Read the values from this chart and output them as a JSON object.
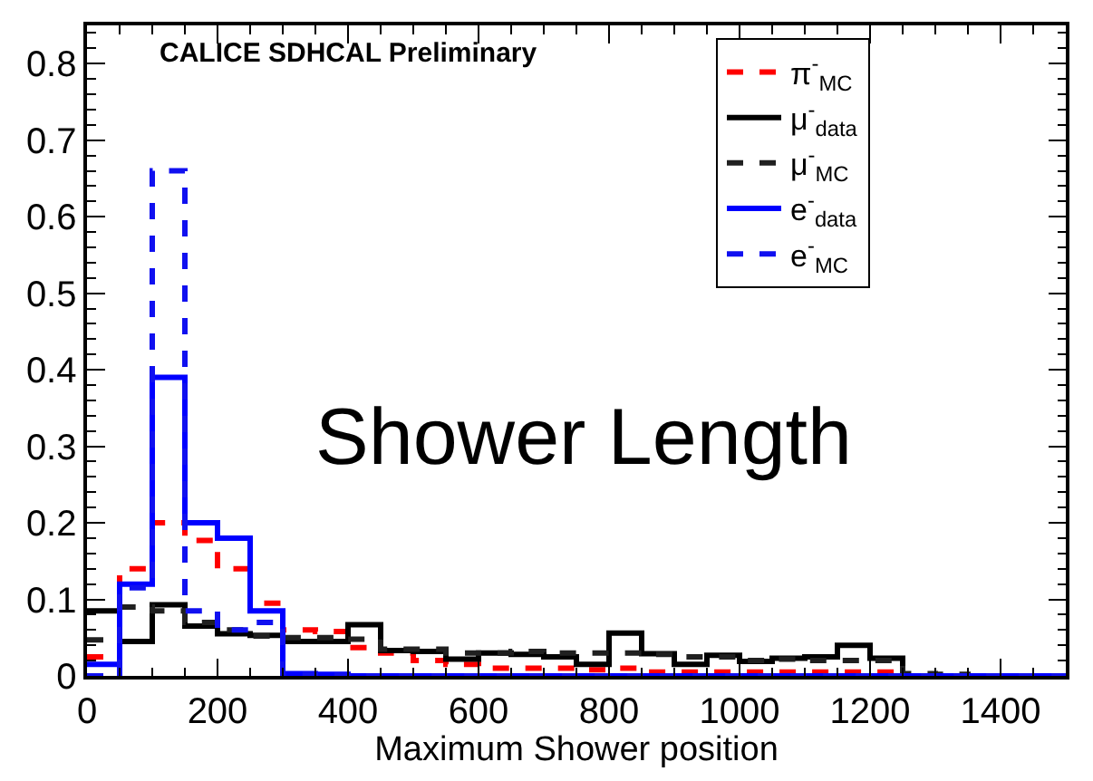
{
  "chart_data": {
    "type": "histogram",
    "xlabel": "Maximum Shower position",
    "annotations": [
      "CALICE SDHCAL Preliminary",
      "Shower Length"
    ],
    "bins": [
      0,
      50,
      100,
      150,
      200,
      250,
      300,
      350,
      400,
      450,
      500,
      550,
      600,
      650,
      700,
      750,
      800,
      850,
      900,
      950,
      1000,
      1050,
      1100,
      1150,
      1200,
      1250,
      1300,
      1350,
      1400,
      1450,
      1500
    ],
    "series": [
      {
        "name": "π$^{-}$$_{MC}$",
        "color": "#ff0000",
        "line_style": "dashed",
        "values": [
          0.025,
          0.14,
          0.2,
          0.177,
          0.14,
          0.095,
          0.06,
          0.058,
          0.037,
          0.03,
          0.02,
          0.015,
          0.01,
          0.01,
          0.01,
          0.008,
          0.01,
          0.005,
          0.005,
          0.005,
          0.005,
          0.005,
          0.005,
          0.005,
          0.005,
          0,
          0,
          0,
          0,
          0
        ]
      },
      {
        "name": "μ$^{-}$$_{data}$",
        "color": "#000000",
        "line_style": "solid",
        "values": [
          0.085,
          0.045,
          0.093,
          0.065,
          0.055,
          0.053,
          0.045,
          0.045,
          0.067,
          0.033,
          0.032,
          0.022,
          0.03,
          0.028,
          0.025,
          0.015,
          0.056,
          0.029,
          0.015,
          0.027,
          0.019,
          0.023,
          0.025,
          0.04,
          0.023,
          0,
          0,
          0,
          0,
          0
        ]
      },
      {
        "name": "μ$^{-}$$_{MC}$",
        "color": "#202020",
        "line_style": "dashed",
        "values": [
          0.047,
          0.09,
          0.085,
          0.07,
          0.06,
          0.052,
          0.05,
          0.05,
          0.048,
          0.035,
          0.035,
          0.03,
          0.03,
          0.032,
          0.03,
          0.03,
          0.03,
          0.028,
          0.025,
          0.025,
          0.02,
          0.022,
          0.02,
          0.02,
          0.02,
          0.003,
          0.002,
          0,
          0,
          0
        ]
      },
      {
        "name": "e$^{-}$$_{data}$",
        "color": "#0000ff",
        "line_style": "solid",
        "values": [
          0.015,
          0.12,
          0.39,
          0.2,
          0.18,
          0.085,
          0.003,
          0.002,
          0,
          0,
          0,
          0,
          0,
          0,
          0,
          0,
          0,
          0,
          0,
          0,
          0,
          0,
          0,
          0,
          0,
          0,
          0,
          0,
          0,
          0
        ]
      },
      {
        "name": "e$^{-}$$_{MC}$",
        "color": "#1010f0",
        "line_style": "dashed",
        "values": [
          0,
          0.115,
          0.66,
          0.085,
          0.06,
          0.07,
          0.002,
          0.001,
          0,
          0,
          0,
          0,
          0,
          0,
          0,
          0,
          0,
          0,
          0,
          0,
          0,
          0,
          0,
          0,
          0,
          0,
          0,
          0,
          0,
          0
        ]
      }
    ],
    "xlim": [
      0,
      1500
    ],
    "xticks": [
      0,
      200,
      400,
      600,
      800,
      1000,
      1200,
      1400
    ],
    "ylim": [
      0,
      0.85
    ],
    "yticks": [
      0,
      0.1,
      0.2,
      0.3,
      0.4,
      0.5,
      0.6,
      0.7,
      0.8
    ],
    "legend": "top right"
  }
}
